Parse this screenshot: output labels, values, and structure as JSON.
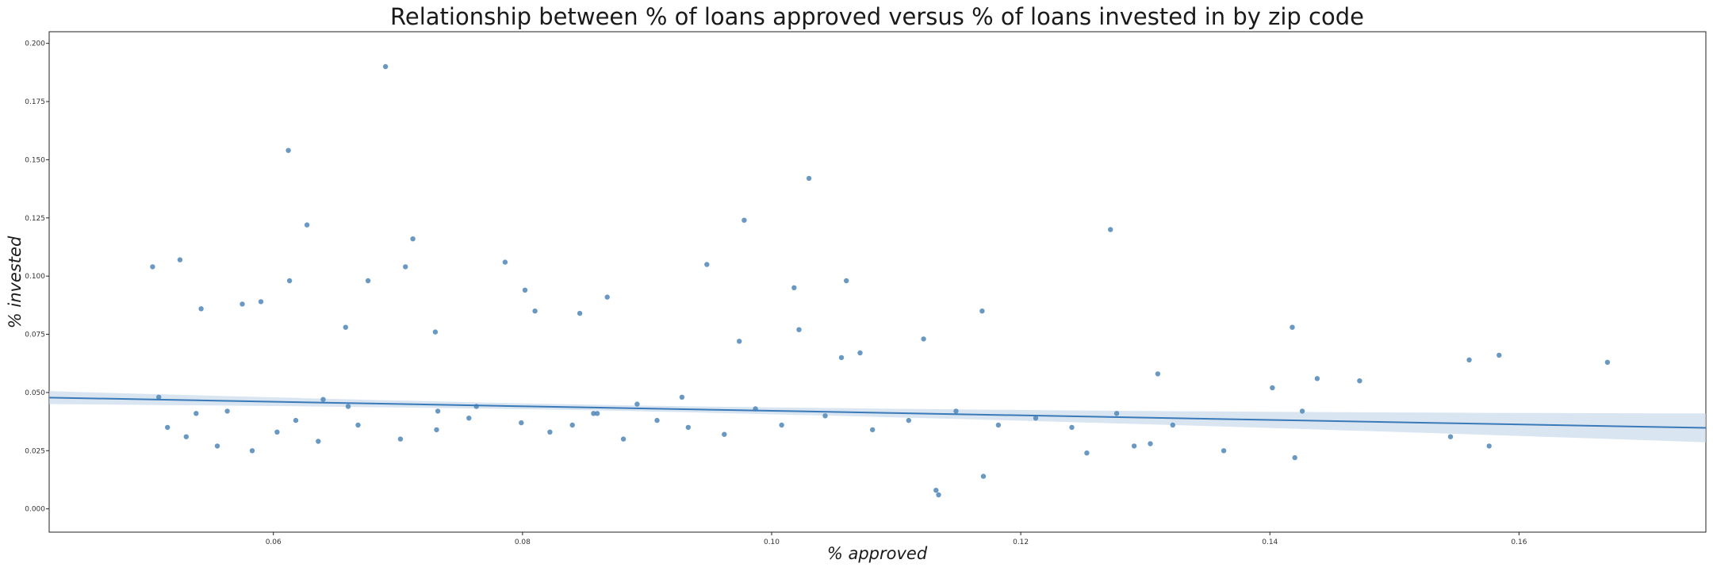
{
  "chart_data": {
    "type": "scatter",
    "title": "Relationship between % of loans approved versus % of loans invested in by zip code",
    "xlabel": "% approved",
    "ylabel": "% invested",
    "xlim": [
      0.042,
      0.175
    ],
    "ylim": [
      -0.01,
      0.205
    ],
    "xticks": [
      "0.06",
      "0.08",
      "0.10",
      "0.12",
      "0.14",
      "0.16"
    ],
    "yticks": [
      "0.000",
      "0.025",
      "0.050",
      "0.075",
      "0.100",
      "0.125",
      "0.150",
      "0.175",
      "0.200"
    ],
    "grid": false,
    "legend": "none",
    "point_color": "#4f87b8",
    "regression": {
      "x": [
        0.042,
        0.175
      ],
      "y": [
        0.0478,
        0.0348
      ],
      "color": "#3a7ab8",
      "ci_color": "#c5d7ea",
      "ci_halfwidth_edges": [
        0.0028,
        0.0062
      ],
      "ci_halfwidth_center": 0.0012
    },
    "points": {
      "x": [
        0.069,
        0.0612,
        0.103,
        0.0627,
        0.0978,
        0.1272,
        0.0712,
        0.0503,
        0.0525,
        0.0706,
        0.0948,
        0.0802,
        0.1018,
        0.0786,
        0.0613,
        0.0676,
        0.106,
        0.0868,
        0.059,
        0.0542,
        0.0575,
        0.073,
        0.1022,
        0.0846,
        0.081,
        0.0658,
        0.1169,
        0.1418,
        0.1584,
        0.1671,
        0.156,
        0.1438,
        0.1472,
        0.1402,
        0.131,
        0.1545,
        0.1576,
        0.1363,
        0.142,
        0.1426,
        0.1132,
        0.1134,
        0.117,
        0.1304,
        0.1291,
        0.1253,
        0.1122,
        0.1056,
        0.1071,
        0.0974,
        0.0928,
        0.0892,
        0.086,
        0.084,
        0.0757,
        0.0732,
        0.066,
        0.064,
        0.0618,
        0.0563,
        0.0538,
        0.0515,
        0.0508,
        0.053,
        0.0555,
        0.0583,
        0.0603,
        0.0636,
        0.0668,
        0.0702,
        0.0731,
        0.0763,
        0.0799,
        0.0822,
        0.0857,
        0.0881,
        0.0908,
        0.0933,
        0.0962,
        0.0987,
        0.1008,
        0.1043,
        0.1081,
        0.111,
        0.1148,
        0.1182,
        0.1212,
        0.1241,
        0.1277,
        0.1322
      ],
      "y": [
        0.19,
        0.154,
        0.142,
        0.122,
        0.124,
        0.12,
        0.116,
        0.104,
        0.107,
        0.104,
        0.105,
        0.094,
        0.095,
        0.106,
        0.098,
        0.098,
        0.098,
        0.091,
        0.089,
        0.086,
        0.088,
        0.076,
        0.077,
        0.084,
        0.085,
        0.078,
        0.085,
        0.078,
        0.066,
        0.063,
        0.064,
        0.056,
        0.055,
        0.052,
        0.058,
        0.031,
        0.027,
        0.025,
        0.022,
        0.042,
        0.008,
        0.006,
        0.014,
        0.028,
        0.027,
        0.024,
        0.073,
        0.065,
        0.067,
        0.072,
        0.048,
        0.045,
        0.041,
        0.036,
        0.039,
        0.042,
        0.044,
        0.047,
        0.038,
        0.042,
        0.041,
        0.035,
        0.048,
        0.031,
        0.027,
        0.025,
        0.033,
        0.029,
        0.036,
        0.03,
        0.034,
        0.044,
        0.037,
        0.033,
        0.041,
        0.03,
        0.038,
        0.035,
        0.032,
        0.043,
        0.036,
        0.04,
        0.034,
        0.038,
        0.042,
        0.036,
        0.039,
        0.035,
        0.041,
        0.036
      ]
    }
  }
}
